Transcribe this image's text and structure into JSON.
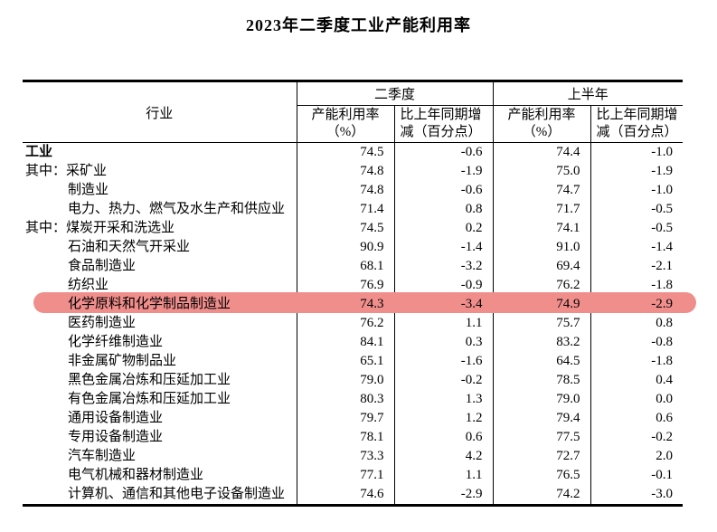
{
  "page": {
    "title": "2023年二季度工业产能利用率"
  },
  "table": {
    "header": {
      "industry": "行业",
      "groups": [
        {
          "label": "二季度"
        },
        {
          "label": "上半年"
        }
      ],
      "sub_rate_line1": "产能利用率",
      "sub_rate_line2": "（%）",
      "sub_diff_line1": "比上年同期增",
      "sub_diff_line2": "减（百分点）"
    },
    "highlight_color": "#f08e8c",
    "rows": [
      {
        "prefix": "",
        "name": "工业",
        "bold": true,
        "indent": false,
        "highlight": false,
        "q2_rate": "74.5",
        "q2_diff": "-0.6",
        "h1_rate": "74.4",
        "h1_diff": "-1.0"
      },
      {
        "prefix": "其中：",
        "name": "采矿业",
        "bold": false,
        "indent": false,
        "highlight": false,
        "q2_rate": "74.8",
        "q2_diff": "-1.9",
        "h1_rate": "75.0",
        "h1_diff": "-1.9"
      },
      {
        "prefix": "",
        "name": "制造业",
        "bold": false,
        "indent": true,
        "highlight": false,
        "q2_rate": "74.8",
        "q2_diff": "-0.6",
        "h1_rate": "74.7",
        "h1_diff": "-1.0"
      },
      {
        "prefix": "",
        "name": "电力、热力、燃气及水生产和供应业",
        "bold": false,
        "indent": true,
        "highlight": false,
        "q2_rate": "71.4",
        "q2_diff": "0.8",
        "h1_rate": "71.7",
        "h1_diff": "-0.5"
      },
      {
        "prefix": "其中：",
        "name": "煤炭开采和洗选业",
        "bold": false,
        "indent": false,
        "highlight": false,
        "q2_rate": "74.5",
        "q2_diff": "0.2",
        "h1_rate": "74.1",
        "h1_diff": "-0.5"
      },
      {
        "prefix": "",
        "name": "石油和天然气开采业",
        "bold": false,
        "indent": true,
        "highlight": false,
        "q2_rate": "90.9",
        "q2_diff": "-1.4",
        "h1_rate": "91.0",
        "h1_diff": "-1.4"
      },
      {
        "prefix": "",
        "name": "食品制造业",
        "bold": false,
        "indent": true,
        "highlight": false,
        "q2_rate": "68.1",
        "q2_diff": "-3.2",
        "h1_rate": "69.4",
        "h1_diff": "-2.1"
      },
      {
        "prefix": "",
        "name": "纺织业",
        "bold": false,
        "indent": true,
        "highlight": false,
        "q2_rate": "76.9",
        "q2_diff": "-0.9",
        "h1_rate": "76.2",
        "h1_diff": "-1.8"
      },
      {
        "prefix": "",
        "name": "化学原料和化学制品制造业",
        "bold": false,
        "indent": true,
        "highlight": true,
        "q2_rate": "74.3",
        "q2_diff": "-3.4",
        "h1_rate": "74.9",
        "h1_diff": "-2.9"
      },
      {
        "prefix": "",
        "name": "医药制造业",
        "bold": false,
        "indent": true,
        "highlight": false,
        "q2_rate": "76.2",
        "q2_diff": "1.1",
        "h1_rate": "75.7",
        "h1_diff": "0.8"
      },
      {
        "prefix": "",
        "name": "化学纤维制造业",
        "bold": false,
        "indent": true,
        "highlight": false,
        "q2_rate": "84.1",
        "q2_diff": "0.3",
        "h1_rate": "83.2",
        "h1_diff": "-0.8"
      },
      {
        "prefix": "",
        "name": "非金属矿物制品业",
        "bold": false,
        "indent": true,
        "highlight": false,
        "q2_rate": "65.1",
        "q2_diff": "-1.6",
        "h1_rate": "64.5",
        "h1_diff": "-1.8"
      },
      {
        "prefix": "",
        "name": "黑色金属冶炼和压延加工业",
        "bold": false,
        "indent": true,
        "highlight": false,
        "q2_rate": "79.0",
        "q2_diff": "-0.2",
        "h1_rate": "78.5",
        "h1_diff": "0.4"
      },
      {
        "prefix": "",
        "name": "有色金属冶炼和压延加工业",
        "bold": false,
        "indent": true,
        "highlight": false,
        "q2_rate": "80.3",
        "q2_diff": "1.3",
        "h1_rate": "79.0",
        "h1_diff": "0.0"
      },
      {
        "prefix": "",
        "name": "通用设备制造业",
        "bold": false,
        "indent": true,
        "highlight": false,
        "q2_rate": "79.7",
        "q2_diff": "1.2",
        "h1_rate": "79.4",
        "h1_diff": "0.6"
      },
      {
        "prefix": "",
        "name": "专用设备制造业",
        "bold": false,
        "indent": true,
        "highlight": false,
        "q2_rate": "78.1",
        "q2_diff": "0.6",
        "h1_rate": "77.5",
        "h1_diff": "-0.2"
      },
      {
        "prefix": "",
        "name": "汽车制造业",
        "bold": false,
        "indent": true,
        "highlight": false,
        "q2_rate": "73.3",
        "q2_diff": "4.2",
        "h1_rate": "72.7",
        "h1_diff": "2.0"
      },
      {
        "prefix": "",
        "name": "电气机械和器材制造业",
        "bold": false,
        "indent": true,
        "highlight": false,
        "q2_rate": "77.1",
        "q2_diff": "1.1",
        "h1_rate": "76.5",
        "h1_diff": "-0.1"
      },
      {
        "prefix": "",
        "name": "计算机、通信和其他电子设备制造业",
        "bold": false,
        "indent": true,
        "highlight": false,
        "q2_rate": "74.6",
        "q2_diff": "-2.9",
        "h1_rate": "74.2",
        "h1_diff": "-3.0"
      }
    ]
  }
}
